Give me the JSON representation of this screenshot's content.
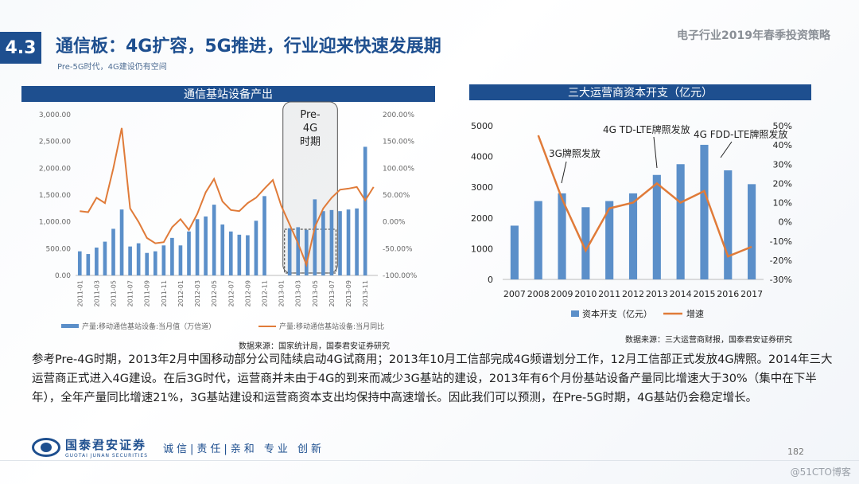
{
  "header": {
    "section": "4.3",
    "title": "通信板：4G扩容，5G推进，行业迎来快速发展期",
    "subtitle": "Pre-5G时代，4G建设仍有空间",
    "report": "电子行业2019年春季投资策略"
  },
  "body": {
    "paragraph": "参考Pre-4G时期，2013年2月中国移动部分公司陆续启动4G试商用；2013年10月工信部完成4G频谱划分工作，12月工信部正式发放4G牌照。2014年三大运营商正式进入4G建设。在后3G时代，运营商并未由于4G的到来而减少3G基站的建设，2013年有6个月份基站设备产量同比增速大于30%（集中在下半年），全年产量同比增速21%，3G基站建设和运营商资本支出均保持中高速增长。因此我们可以预测，在Pre-5G时期，4G基站仍会稳定增长。"
  },
  "footer": {
    "logo_cn": "国泰君安证券",
    "logo_en": "GUOTAI JUNAN SECURITIES",
    "slogan": "诚信|责任|亲和 专业 创新",
    "page": "182",
    "watermark": "@51CTO博客"
  },
  "colors": {
    "brand": "#1e4f8f",
    "bar": "#5b8fc9",
    "line": "#e07b39"
  },
  "chart_data": [
    {
      "type": "bar",
      "title": "通信基站设备产出",
      "source": "数据来源：国家统计局，国泰君安证券研究",
      "annotation": "Pre-4G时期",
      "categories": [
        "2011-01",
        "2011-02",
        "2011-03",
        "2011-04",
        "2011-05",
        "2011-06",
        "2011-07",
        "2011-08",
        "2011-09",
        "2011-10",
        "2011-11",
        "2011-12",
        "2012-01",
        "2012-02",
        "2012-03",
        "2012-04",
        "2012-05",
        "2012-06",
        "2012-07",
        "2012-08",
        "2012-09",
        "2012-10",
        "2012-11",
        "2012-12",
        "2013-01",
        "2013-02",
        "2013-03",
        "2013-04",
        "2013-05",
        "2013-06",
        "2013-07",
        "2013-08",
        "2013-09",
        "2013-10",
        "2013-11",
        "2013-12"
      ],
      "tick_labels": [
        "2011-01",
        "2011-03",
        "2011-05",
        "2011-07",
        "2011-09",
        "2011-11",
        "2012-01",
        "2012-03",
        "2012-05",
        "2012-07",
        "2012-09",
        "2012-11",
        "2013-01",
        "2013-03",
        "2013-05",
        "2013-07",
        "2013-09",
        "2013-11"
      ],
      "series": [
        {
          "name": "产量:移动通信基站设备:当月值（万信道）",
          "axis": "left",
          "values": [
            450,
            400,
            520,
            630,
            870,
            1230,
            540,
            600,
            420,
            450,
            560,
            700,
            560,
            820,
            1050,
            1100,
            1320,
            950,
            820,
            760,
            750,
            1020,
            1480,
            0,
            0,
            880,
            900,
            850,
            1420,
            1200,
            1220,
            1200,
            1230,
            1250,
            2400,
            0
          ]
        },
        {
          "name": "产量:移动通信基站设备:当月同比",
          "axis": "right",
          "values": [
            20,
            18,
            45,
            35,
            100,
            175,
            25,
            0,
            -30,
            -40,
            -38,
            -10,
            5,
            -15,
            15,
            55,
            80,
            38,
            22,
            20,
            35,
            45,
            62,
            78,
            30,
            -5,
            -40,
            -80,
            -10,
            25,
            45,
            60,
            62,
            65,
            40,
            65
          ]
        }
      ],
      "yleft": {
        "ticks": [
          "0.00",
          "500.00",
          "1,000.00",
          "1,500.00",
          "2,000.00",
          "2,500.00",
          "3,000.00"
        ],
        "range": [
          0,
          3000
        ]
      },
      "yright": {
        "ticks": [
          "-100.00%",
          "-50.00%",
          "0.00%",
          "50.00%",
          "100.00%",
          "150.00%",
          "200.00%"
        ],
        "range": [
          -100,
          200
        ]
      }
    },
    {
      "type": "bar",
      "title": "三大运营商资本开支（亿元）",
      "source": "数据来源：三大运营商财报，国泰君安证券研究",
      "categories": [
        "2007",
        "2008",
        "2009",
        "2010",
        "2011",
        "2012",
        "2013",
        "2014",
        "2015",
        "2016",
        "2017"
      ],
      "series": [
        {
          "name": "资本开支（亿元）",
          "axis": "left",
          "values": [
            1750,
            2550,
            2800,
            2350,
            2550,
            2800,
            3400,
            3750,
            4380,
            3550,
            3100
          ]
        },
        {
          "name": "增速",
          "axis": "right",
          "values": [
            null,
            45,
            12,
            -15,
            7,
            10,
            20,
            10,
            16,
            -18,
            -13
          ]
        }
      ],
      "annotations": [
        "3G牌照发放",
        "4G TD-LTE牌照发放",
        "4G FDD-LTE牌照发放"
      ],
      "yleft": {
        "ticks": [
          "0",
          "1000",
          "2000",
          "3000",
          "4000",
          "5000"
        ],
        "range": [
          0,
          5000
        ]
      },
      "yright": {
        "ticks": [
          "-30%",
          "-20%",
          "-10%",
          "0%",
          "10%",
          "20%",
          "30%",
          "40%",
          "50%"
        ],
        "range": [
          -30,
          50
        ]
      }
    }
  ]
}
